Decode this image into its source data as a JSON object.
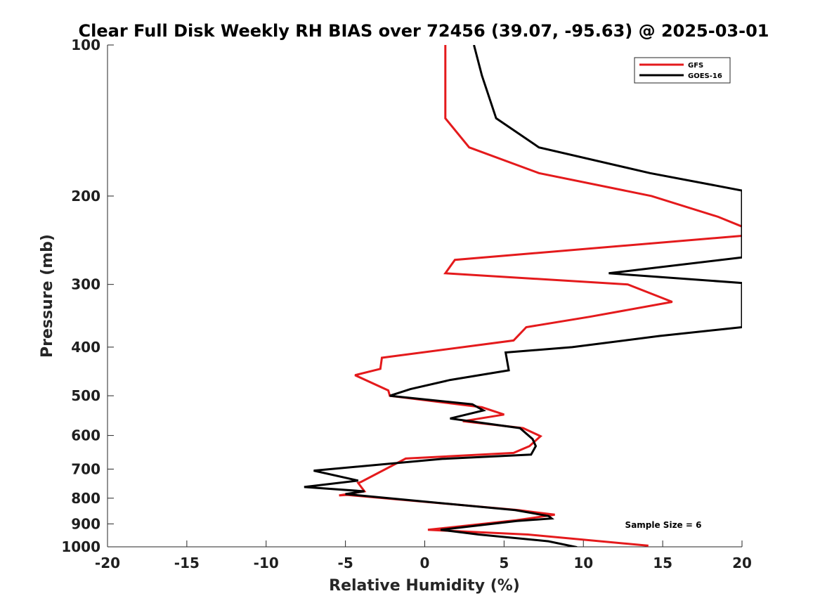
{
  "chart_data": {
    "type": "line",
    "title": "Clear Full Disk Weekly RH BIAS over 72456 (39.07, -95.63) @ 2025-03-01",
    "xlabel": "Relative Humidity (%)",
    "ylabel": "Pressure (mb)",
    "xlim": [
      -20,
      20
    ],
    "ylim": [
      100,
      1000
    ],
    "y_scale": "log",
    "y_reversed": true,
    "xticks": [
      -20,
      -15,
      -10,
      -5,
      0,
      5,
      10,
      15,
      20
    ],
    "xtick_labels": [
      "-20",
      "-15",
      "-10",
      "-5",
      "0",
      "5",
      "10",
      "15",
      "20"
    ],
    "yticks": [
      100,
      200,
      300,
      400,
      500,
      600,
      700,
      800,
      900,
      1000
    ],
    "ytick_labels": [
      "100",
      "200",
      "300",
      "400",
      "500",
      "600",
      "700",
      "800",
      "900",
      "1000"
    ],
    "grid": false,
    "legend_position": "top-right",
    "annotation": "Sample Size = 6",
    "series": [
      {
        "name": "GFS",
        "color": "#e41a1c",
        "x": [
          1.3,
          1.3,
          1.3,
          2.8,
          7.2,
          14.3,
          18.5,
          20.0,
          20.0,
          1.9,
          1.3,
          12.8,
          15.6,
          10.4,
          6.4,
          5.6,
          -2.7,
          -2.8,
          -4.4,
          -2.3,
          -2.2,
          3.6,
          5.0,
          2.4,
          6.2,
          7.3,
          6.6,
          5.6,
          -1.2,
          -4.0,
          -4.2,
          -3.8,
          -5.4,
          -4.9,
          5.9,
          8.2,
          5.8,
          0.2,
          6.5,
          14.1
        ],
        "y": [
          100,
          115,
          140,
          160,
          180,
          200,
          220,
          230,
          240,
          268,
          285,
          300,
          325,
          348,
          365,
          388,
          420,
          442,
          455,
          488,
          500,
          527,
          545,
          562,
          580,
          602,
          630,
          650,
          667,
          742,
          746,
          775,
          790,
          788,
          845,
          863,
          885,
          925,
          945,
          995
        ]
      },
      {
        "name": "GOES-16",
        "color": "#000000",
        "x": [
          3.1,
          3.6,
          4.5,
          7.2,
          14.2,
          20.0,
          20.0,
          11.6,
          20.0,
          20.0,
          14.8,
          9.3,
          5.1,
          5.3,
          1.6,
          -0.9,
          -2.2,
          3.0,
          3.7,
          1.6,
          6.0,
          6.8,
          7.0,
          6.7,
          1.1,
          -7.0,
          -4.2,
          -7.6,
          -3.8,
          -5.0,
          5.7,
          7.8,
          8.0,
          5.8,
          1.0,
          3.4,
          7.8,
          9.6
        ],
        "y": [
          100,
          115,
          140,
          160,
          180,
          195,
          265,
          285,
          298,
          365,
          380,
          400,
          410,
          445,
          465,
          485,
          500,
          520,
          535,
          555,
          580,
          610,
          630,
          655,
          668,
          705,
          738,
          760,
          775,
          785,
          845,
          868,
          878,
          888,
          925,
          945,
          975,
          1002
        ]
      }
    ]
  }
}
